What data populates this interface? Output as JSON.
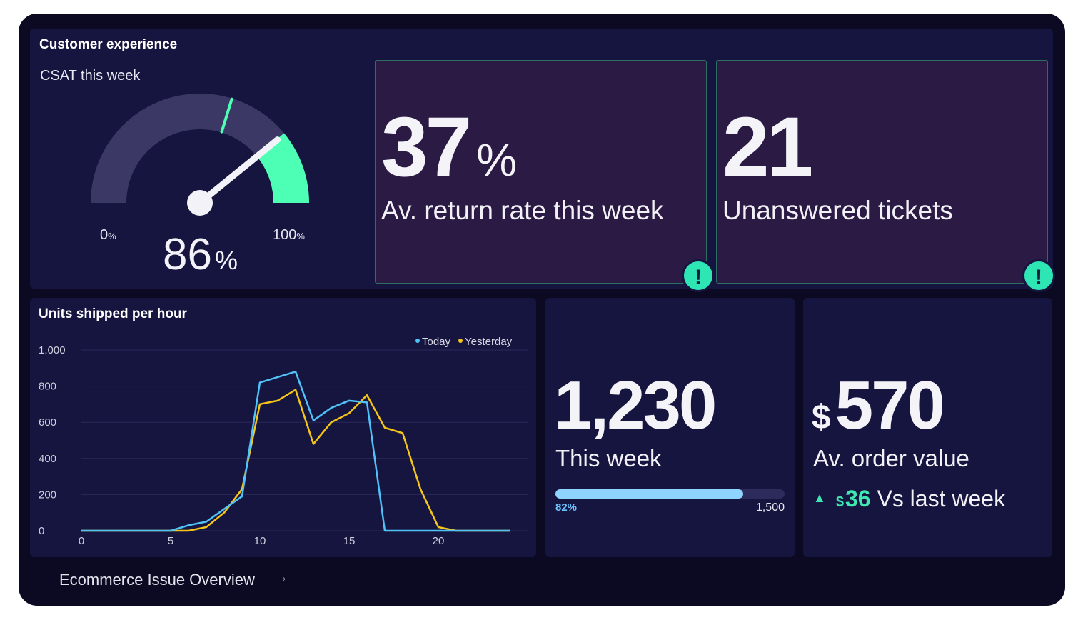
{
  "customer_experience": {
    "title": "Customer experience",
    "csat_label": "CSAT this week",
    "gauge": {
      "value": 86,
      "value_text": "86",
      "unit": "%",
      "min_label": "0",
      "max_label": "100",
      "min_unit": "%",
      "max_unit": "%",
      "colors": {
        "track": "#3b3866",
        "accent": "#4dffb4",
        "needle": "#f2f2f8"
      }
    }
  },
  "return_rate": {
    "value": "37",
    "unit": "%",
    "label": "Av. return rate this week",
    "alert_icon": "!"
  },
  "tickets": {
    "value": "21",
    "label": "Unanswered tickets",
    "alert_icon": "!"
  },
  "units_chart": {
    "title": "Units shipped per hour",
    "legend": [
      {
        "name": "Today",
        "color": "#4fc3f7"
      },
      {
        "name": "Yesterday",
        "color": "#f5c518"
      }
    ]
  },
  "chart_data": {
    "type": "line",
    "title": "Units shipped per hour",
    "xlabel": "",
    "ylabel": "",
    "xlim": [
      0,
      25
    ],
    "ylim": [
      0,
      1000
    ],
    "x_ticks": [
      0,
      5,
      10,
      15,
      20
    ],
    "y_ticks": [
      0,
      200,
      400,
      600,
      800,
      1000
    ],
    "y_tick_labels": [
      "0",
      "200",
      "400",
      "600",
      "800",
      "1,000"
    ],
    "grid": true,
    "legend_position": "top-right",
    "series": [
      {
        "name": "Today",
        "color": "#4fc3f7",
        "x": [
          0,
          1,
          2,
          3,
          4,
          5,
          6,
          7,
          8,
          9,
          10,
          11,
          12,
          13,
          14,
          15,
          16,
          17,
          18,
          19,
          20,
          21,
          22,
          23,
          24
        ],
        "y": [
          0,
          0,
          0,
          0,
          0,
          0,
          30,
          50,
          120,
          190,
          820,
          850,
          880,
          610,
          680,
          720,
          710,
          0,
          0,
          0,
          0,
          0,
          0,
          0,
          0
        ]
      },
      {
        "name": "Yesterday",
        "color": "#f5c518",
        "x": [
          0,
          1,
          2,
          3,
          4,
          5,
          6,
          7,
          8,
          9,
          10,
          11,
          12,
          13,
          14,
          15,
          16,
          17,
          18,
          19,
          20,
          21,
          22,
          23,
          24
        ],
        "y": [
          0,
          0,
          0,
          0,
          0,
          0,
          0,
          20,
          100,
          230,
          700,
          720,
          780,
          480,
          600,
          650,
          750,
          570,
          540,
          230,
          20,
          0,
          0,
          0,
          0
        ]
      }
    ]
  },
  "shipped_week": {
    "value": "1,230",
    "label": "This week",
    "progress": 0.82,
    "progress_label": "82%",
    "target_label": "1,500",
    "colors": {
      "fill": "#8fd3ff",
      "track": "#2d2a5c"
    }
  },
  "order_value": {
    "currency": "$",
    "value": "570",
    "label": "Av. order value",
    "delta_currency": "$",
    "delta_value": "36",
    "delta_suffix": " Vs last week",
    "delta_icon": "triangle-up-icon"
  },
  "footer": {
    "label": "Ecommerce Issue Overview",
    "chevron": "›"
  }
}
